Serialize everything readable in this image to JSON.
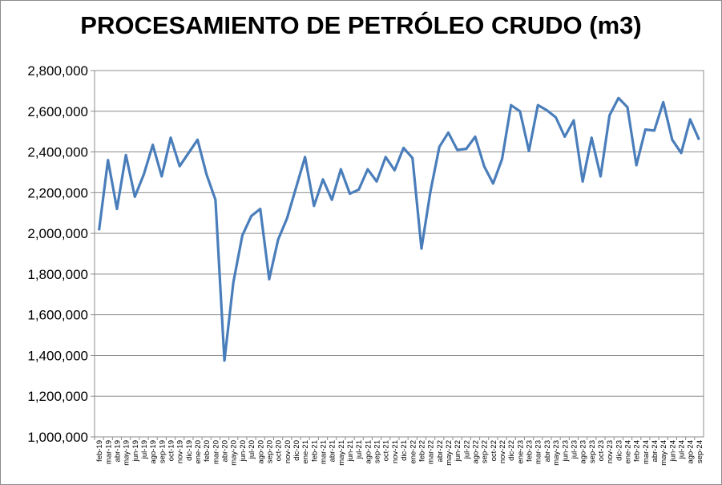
{
  "chart_data": {
    "type": "line",
    "title": "PROCESAMIENTO DE PETRÓLEO CRUDO (m3)",
    "xlabel": "",
    "ylabel": "",
    "ylim": [
      1000000,
      2800000
    ],
    "yticks": [
      "1,000,000",
      "1,200,000",
      "1,400,000",
      "1,600,000",
      "1,800,000",
      "2,000,000",
      "2,200,000",
      "2,400,000",
      "2,600,000",
      "2,800,000"
    ],
    "grid": true,
    "legend": "none",
    "line_color": "#4a7ebb",
    "categories": [
      "feb-19",
      "mar-19",
      "abr-19",
      "may-19",
      "jun-19",
      "jul-19",
      "ago-19",
      "sep-19",
      "oct-19",
      "nov-19",
      "dic-19",
      "ene-20",
      "feb-20",
      "mar-20",
      "abr-20",
      "may-20",
      "jun-20",
      "jul-20",
      "ago-20",
      "sep-20",
      "oct-20",
      "nov-20",
      "dic-20",
      "ene-21",
      "feb-21",
      "mar-21",
      "abr-21",
      "may-21",
      "jun-21",
      "jul-21",
      "ago-21",
      "sep-21",
      "oct-21",
      "nov-21",
      "dic-21",
      "ene-22",
      "feb-22",
      "mar-22",
      "abr-22",
      "may-22",
      "jun-22",
      "jul-22",
      "ago-22",
      "sep-22",
      "oct-22",
      "nov-22",
      "dic-22",
      "ene-23",
      "feb-23",
      "mar-23",
      "abr-23",
      "may-23",
      "jun-23",
      "jul-23",
      "ago-23",
      "sep-23",
      "oct-23",
      "nov-23",
      "dic-23",
      "ene-24",
      "feb-24",
      "mar-24",
      "abr-24",
      "may-24",
      "jun-24",
      "jul-24",
      "ago-24",
      "sep-24"
    ],
    "series": [
      {
        "values": [
          2015000,
          2360000,
          2120000,
          2385000,
          2180000,
          2290000,
          2435000,
          2280000,
          2470000,
          2330000,
          2395000,
          2460000,
          2290000,
          2165000,
          1375000,
          1760000,
          1990000,
          2085000,
          2120000,
          1775000,
          1970000,
          2075000,
          2225000,
          2375000,
          2135000,
          2265000,
          2165000,
          2315000,
          2195000,
          2215000,
          2315000,
          2255000,
          2375000,
          2310000,
          2420000,
          2370000,
          1925000,
          2205000,
          2425000,
          2495000,
          2410000,
          2415000,
          2475000,
          2330000,
          2245000,
          2365000,
          2630000,
          2600000,
          2405000,
          2630000,
          2605000,
          2570000,
          2475000,
          2555000,
          2255000,
          2470000,
          2280000,
          2580000,
          2665000,
          2620000,
          2335000,
          2510000,
          2505000,
          2645000,
          2460000,
          2395000,
          2560000,
          2460000
        ]
      }
    ]
  }
}
